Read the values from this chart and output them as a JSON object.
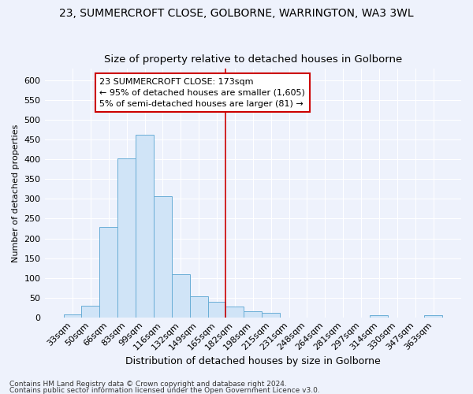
{
  "title_line1": "23, SUMMERCROFT CLOSE, GOLBORNE, WARRINGTON, WA3 3WL",
  "title_line2": "Size of property relative to detached houses in Golborne",
  "xlabel": "Distribution of detached houses by size in Golborne",
  "ylabel": "Number of detached properties",
  "bar_color": "#d0e4f7",
  "bar_edge_color": "#6aaed6",
  "background_color": "#eef2fc",
  "grid_color": "#ffffff",
  "categories": [
    "33sqm",
    "50sqm",
    "66sqm",
    "83sqm",
    "99sqm",
    "116sqm",
    "132sqm",
    "149sqm",
    "165sqm",
    "182sqm",
    "198sqm",
    "215sqm",
    "231sqm",
    "248sqm",
    "264sqm",
    "281sqm",
    "297sqm",
    "314sqm",
    "330sqm",
    "347sqm",
    "363sqm"
  ],
  "values": [
    7,
    30,
    230,
    403,
    463,
    307,
    110,
    54,
    40,
    27,
    15,
    12,
    0,
    0,
    0,
    0,
    0,
    5,
    0,
    0,
    5
  ],
  "ylim": [
    0,
    630
  ],
  "yticks": [
    0,
    50,
    100,
    150,
    200,
    250,
    300,
    350,
    400,
    450,
    500,
    550,
    600
  ],
  "vline_x_index": 8.5,
  "annotation_text": "23 SUMMERCROFT CLOSE: 173sqm\n← 95% of detached houses are smaller (1,605)\n5% of semi-detached houses are larger (81) →",
  "annotation_box_color": "#ffffff",
  "annotation_box_edge_color": "#cc0000",
  "vline_color": "#cc0000",
  "footer_line1": "Contains HM Land Registry data © Crown copyright and database right 2024.",
  "footer_line2": "Contains public sector information licensed under the Open Government Licence v3.0.",
  "title_fontsize": 10,
  "subtitle_fontsize": 9.5,
  "xlabel_fontsize": 9,
  "ylabel_fontsize": 8,
  "tick_fontsize": 8,
  "annot_fontsize": 8,
  "footer_fontsize": 6.5
}
